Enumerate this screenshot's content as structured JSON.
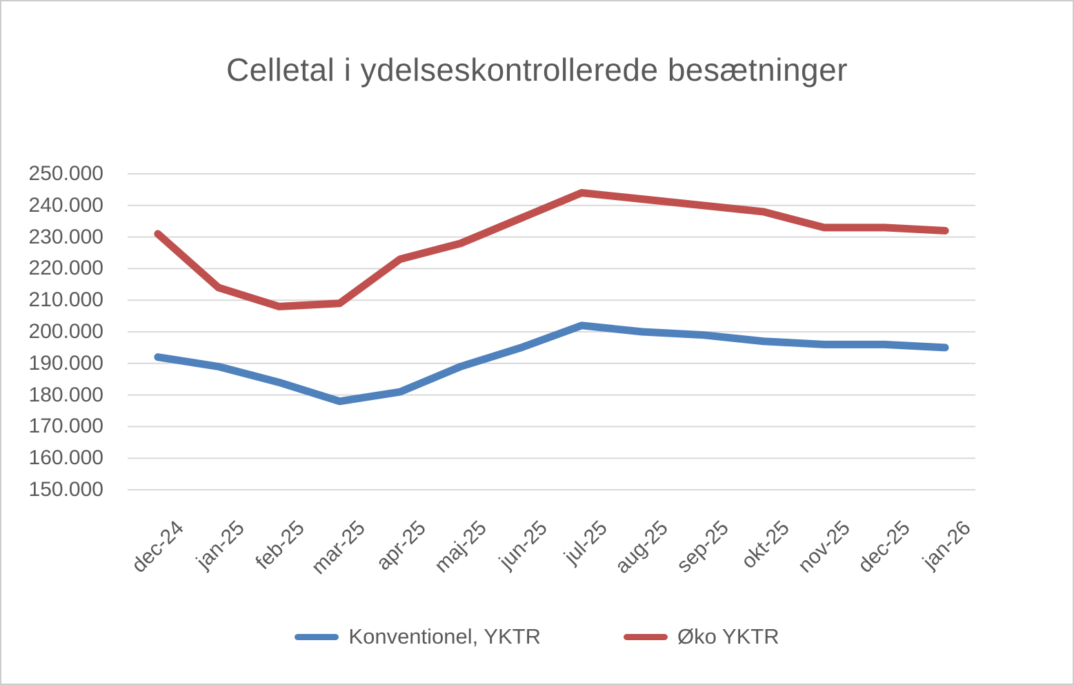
{
  "page": {
    "background": "#ffffff",
    "border_color": "#cccccc"
  },
  "chart_data": {
    "type": "line",
    "title": "Celletal i ydelseskontrollerede besætninger",
    "categories": [
      "dec-24",
      "jan-25",
      "feb-25",
      "mar-25",
      "apr-25",
      "maj-25",
      "jun-25",
      "jul-25",
      "aug-25",
      "sep-25",
      "okt-25",
      "nov-25",
      "dec-25",
      "jan-26"
    ],
    "series": [
      {
        "name": "Konventionel, YKTR",
        "color": "#4F81BD",
        "values": [
          192000,
          189000,
          184000,
          178000,
          181000,
          189000,
          195000,
          202000,
          200000,
          199000,
          197000,
          196000,
          196000,
          195000
        ]
      },
      {
        "name": "Øko YKTR",
        "color": "#C0504D",
        "values": [
          231000,
          214000,
          208000,
          209000,
          223000,
          228000,
          236000,
          244000,
          242000,
          240000,
          238000,
          233000,
          233000,
          232000
        ]
      }
    ],
    "ylim": [
      150000,
      250000
    ],
    "ytick_step": 10000,
    "ytick_labels": [
      "150.000",
      "160.000",
      "170.000",
      "180.000",
      "190.000",
      "200.000",
      "210.000",
      "220.000",
      "230.000",
      "240.000",
      "250.000"
    ],
    "xlabel": "",
    "ylabel": "",
    "grid": true,
    "gridline_color": "#d9d9d9",
    "text_color": "#595959",
    "legend_position": "bottom"
  }
}
